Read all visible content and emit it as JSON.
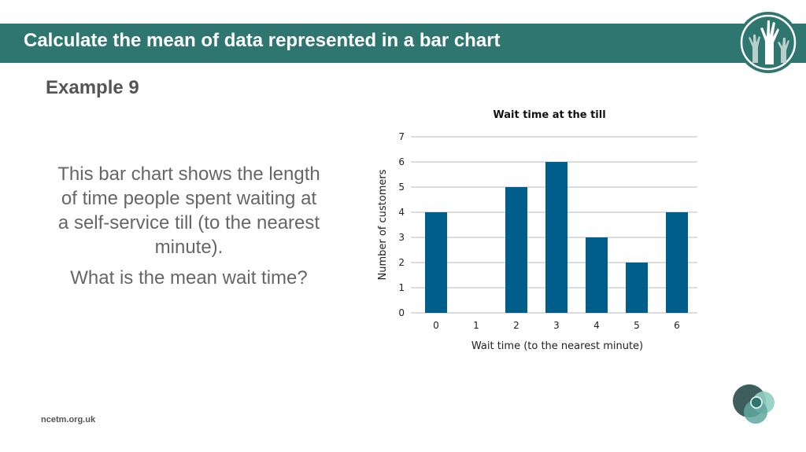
{
  "header": {
    "title": "Calculate the mean of data represented in a bar chart"
  },
  "example_label": "Example 9",
  "description": "This bar chart shows the length of time people spent waiting at a self-service till (to the nearest minute).",
  "question": "What is the mean wait time?",
  "footer": {
    "site": "ncetm.org.uk"
  },
  "colors": {
    "banner": "#2f7670",
    "bar": "#005f8a"
  },
  "chart_data": {
    "type": "bar",
    "title": "Wait time at the till",
    "xlabel": "Wait time (to the nearest minute)",
    "ylabel": "Number of customers",
    "categories": [
      "0",
      "1",
      "2",
      "3",
      "4",
      "5",
      "6"
    ],
    "values": [
      4,
      0,
      5,
      6,
      3,
      2,
      4
    ],
    "ylim": [
      0,
      7
    ],
    "yticks": [
      "0",
      "1",
      "2",
      "3",
      "4",
      "5",
      "6",
      "7"
    ],
    "grid": true
  }
}
